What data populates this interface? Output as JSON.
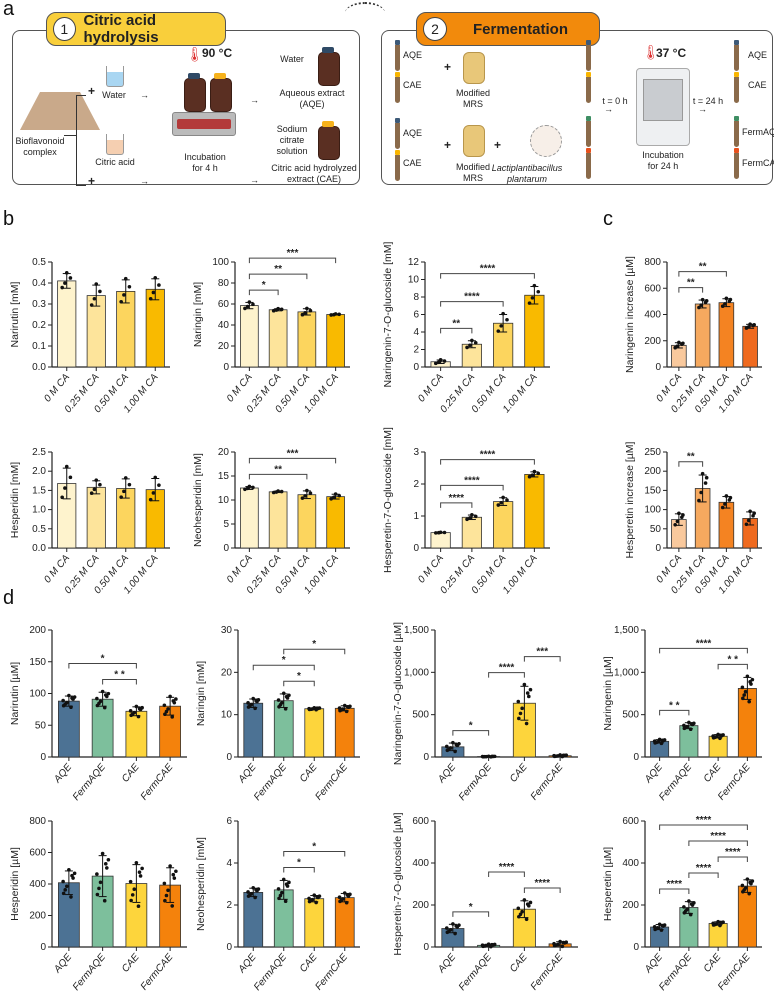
{
  "panel_labels": {
    "a": "a",
    "b": "b",
    "c": "c",
    "d": "d"
  },
  "schematic": {
    "step1": {
      "number": "1",
      "title": "Citric acid hydrolysis",
      "color": "#F9CF3B",
      "bioflavonoid": "Bioflavonoid complex",
      "plus": "+",
      "water": "Water",
      "citric_acid": "Citric acid",
      "temperature": "90 °C",
      "incubation": "Incubation for 4 h",
      "water_pour": "Water",
      "aqe_label": "Aqueous extract (AQE)",
      "sodium_citrate": "Sodium citrate solution",
      "cae_label": "Citric acid hydrolyzed extract (CAE)"
    },
    "step2": {
      "number": "2",
      "title": "Fermentation",
      "color": "#F28A0C",
      "aqe": "AQE",
      "cae": "CAE",
      "plus": "+",
      "mrs": "Modified MRS",
      "bacterium": "Lactiplantibacillus plantarum",
      "t0": "t = 0 h",
      "t24": "t = 24 h",
      "temperature": "37 °C",
      "incubation": "Incubation for 24 h",
      "out_aqe": "AQE",
      "out_cae": "CAE",
      "out_fermaqe": "FermAQE",
      "out_fermcae": "FermCAE"
    },
    "tube_colors": {
      "aqe": "#3D5A78",
      "cae": "#F9B500",
      "fermaqe": "#3E8E63",
      "fermcae": "#E8501C"
    }
  },
  "chart_data": [
    {
      "panel": "b",
      "type": "bar",
      "ylabel": "Narirutin [mM]",
      "categories": [
        "0 M CA",
        "0.25 M CA",
        "0.50 M CA",
        "1.00 M CA"
      ],
      "values": [
        0.41,
        0.34,
        0.36,
        0.37
      ],
      "sd": [
        0.035,
        0.05,
        0.055,
        0.05
      ],
      "n": 4,
      "ylim": [
        0,
        0.5
      ],
      "yticks": [
        0,
        0.1,
        0.2,
        0.3,
        0.4,
        0.5
      ],
      "ytick_labels": [
        "0.0",
        "0.1",
        "0.2",
        "0.3",
        "0.4",
        "0.5"
      ],
      "colors": [
        "#FEF3CD",
        "#FDE49B",
        "#FCD55E",
        "#F9BA00"
      ],
      "significance": []
    },
    {
      "panel": "b",
      "type": "bar",
      "ylabel": "Naringin [mM]",
      "categories": [
        "0 M CA",
        "0.25 M CA",
        "0.50 M CA",
        "1.00 M CA"
      ],
      "values": [
        58.5,
        54.5,
        52.5,
        50
      ],
      "sd": [
        3,
        1,
        3,
        0.5
      ],
      "n": 4,
      "ylim": [
        0,
        100
      ],
      "yticks": [
        0,
        20,
        40,
        60,
        80,
        100
      ],
      "ytick_labels": [
        "0",
        "20",
        "40",
        "60",
        "80",
        "100"
      ],
      "colors": [
        "#FEF3CD",
        "#FDE49B",
        "#FCD55E",
        "#F9BA00"
      ],
      "significance": [
        {
          "from": 0,
          "to": 1,
          "label": "*"
        },
        {
          "from": 0,
          "to": 2,
          "label": "**"
        },
        {
          "from": 0,
          "to": 3,
          "label": "***"
        }
      ]
    },
    {
      "panel": "b",
      "type": "bar",
      "ylabel": "Naringenin-7-O-glucoside [mM]",
      "categories": [
        "0 M CA",
        "0.25 M CA",
        "0.50 M CA",
        "1.00 M CA"
      ],
      "values": [
        0.6,
        2.6,
        5.0,
        8.2
      ],
      "sd": [
        0.2,
        0.4,
        1.0,
        1.0
      ],
      "n": 4,
      "ylim": [
        0,
        12
      ],
      "yticks": [
        0,
        2,
        4,
        6,
        8,
        10,
        12
      ],
      "ytick_labels": [
        "0",
        "2",
        "4",
        "6",
        "8",
        "10",
        "12"
      ],
      "colors": [
        "#FEF3CD",
        "#FDE49B",
        "#FCD55E",
        "#F9BA00"
      ],
      "significance": [
        {
          "from": 0,
          "to": 1,
          "label": "**"
        },
        {
          "from": 0,
          "to": 2,
          "label": "****"
        },
        {
          "from": 0,
          "to": 3,
          "label": "****"
        }
      ]
    },
    {
      "panel": "c",
      "type": "bar",
      "ylabel": "Naringenin increase [µM]",
      "categories": [
        "0 M CA",
        "0.25 M CA",
        "0.50 M CA",
        "1.00 M CA"
      ],
      "values": [
        165,
        480,
        490,
        310
      ],
      "sd": [
        20,
        30,
        30,
        15
      ],
      "n": 5,
      "ylim": [
        0,
        800
      ],
      "yticks": [
        0,
        200,
        400,
        600,
        800
      ],
      "ytick_labels": [
        "0",
        "200",
        "400",
        "600",
        "800"
      ],
      "colors": [
        "#F9C99D",
        "#F6A95F",
        "#F48322",
        "#EF6A1F"
      ],
      "significance": [
        {
          "from": 0,
          "to": 1,
          "label": "**"
        },
        {
          "from": 0,
          "to": 2,
          "label": "**"
        }
      ]
    },
    {
      "panel": "b",
      "type": "bar",
      "ylabel": "Hesperidin [mM]",
      "categories": [
        "0 M CA",
        "0.25 M CA",
        "0.50 M CA",
        "1.00 M CA"
      ],
      "values": [
        1.68,
        1.58,
        1.55,
        1.52
      ],
      "sd": [
        0.4,
        0.17,
        0.25,
        0.29
      ],
      "n": 4,
      "ylim": [
        0,
        2.5
      ],
      "yticks": [
        0,
        0.5,
        1,
        1.5,
        2,
        2.5
      ],
      "ytick_labels": [
        "0.0",
        "0.5",
        "1.0",
        "1.5",
        "2.0",
        "2.5"
      ],
      "colors": [
        "#FEF3CD",
        "#FDE49B",
        "#FCD55E",
        "#F9BA00"
      ],
      "significance": []
    },
    {
      "panel": "b",
      "type": "bar",
      "ylabel": "Neohesperidin [mM]",
      "categories": [
        "0 M CA",
        "0.25 M CA",
        "0.50 M CA",
        "1.00 M CA"
      ],
      "values": [
        12.5,
        11.7,
        11.1,
        10.7
      ],
      "sd": [
        0.3,
        0.15,
        0.8,
        0.5
      ],
      "n": 4,
      "ylim": [
        0,
        20
      ],
      "yticks": [
        0,
        5,
        10,
        15,
        20
      ],
      "ytick_labels": [
        "0",
        "5",
        "10",
        "15",
        "20"
      ],
      "colors": [
        "#FEF3CD",
        "#FDE49B",
        "#FCD55E",
        "#F9BA00"
      ],
      "significance": [
        {
          "from": 0,
          "to": 2,
          "label": "**"
        },
        {
          "from": 0,
          "to": 3,
          "label": "***"
        }
      ]
    },
    {
      "panel": "b",
      "type": "bar",
      "ylabel": "Hesperetin-7-O-glucoside [mM]",
      "categories": [
        "0 M CA",
        "0.25 M CA",
        "0.50 M CA",
        "1.00 M CA"
      ],
      "values": [
        0.48,
        0.96,
        1.45,
        2.3
      ],
      "sd": [
        0.01,
        0.07,
        0.12,
        0.08
      ],
      "n": 4,
      "ylim": [
        0,
        3
      ],
      "yticks": [
        0,
        1,
        2,
        3
      ],
      "ytick_labels": [
        "0",
        "1",
        "2",
        "3"
      ],
      "colors": [
        "#FEF3CD",
        "#FDE49B",
        "#FCD55E",
        "#F9BA00"
      ],
      "significance": [
        {
          "from": 0,
          "to": 1,
          "label": "****"
        },
        {
          "from": 0,
          "to": 2,
          "label": "****"
        },
        {
          "from": 0,
          "to": 3,
          "label": "****"
        }
      ]
    },
    {
      "panel": "c",
      "type": "bar",
      "ylabel": "Hesperetin increase [µM]",
      "categories": [
        "0 M CA",
        "0.25 M CA",
        "0.50 M CA",
        "1.00 M CA"
      ],
      "values": [
        74,
        155,
        119,
        77
      ],
      "sd": [
        15,
        35,
        15,
        17
      ],
      "n": 5,
      "ylim": [
        0,
        250
      ],
      "yticks": [
        0,
        50,
        100,
        150,
        200,
        250
      ],
      "ytick_labels": [
        "0",
        "50",
        "100",
        "150",
        "200",
        "250"
      ],
      "colors": [
        "#F9C99D",
        "#F6A95F",
        "#F48322",
        "#EF6A1F"
      ],
      "significance": [
        {
          "from": 0,
          "to": 1,
          "label": "**"
        }
      ]
    },
    {
      "panel": "d",
      "type": "bar",
      "ylabel": "Narirutin [µM]",
      "categories": [
        "AQE",
        "FermAQE",
        "CAE",
        "FermCAE"
      ],
      "values": [
        88,
        91,
        72,
        80
      ],
      "sd": [
        8,
        11,
        7,
        14
      ],
      "n": 9,
      "ylim": [
        0,
        200
      ],
      "yticks": [
        0,
        50,
        100,
        150,
        200
      ],
      "ytick_labels": [
        "0",
        "50",
        "100",
        "150",
        "200"
      ],
      "colors": [
        "#4C7294",
        "#7DBF9C",
        "#FDD53C",
        "#F4820C"
      ],
      "significance": [
        {
          "from": 1,
          "to": 2,
          "label": "* *"
        },
        {
          "from": 0,
          "to": 2,
          "label": "*"
        }
      ]
    },
    {
      "panel": "d",
      "type": "bar",
      "ylabel": "Naringin [mM]",
      "categories": [
        "AQE",
        "FermAQE",
        "CAE",
        "FermCAE"
      ],
      "values": [
        12.7,
        13.3,
        11.4,
        11.5
      ],
      "sd": [
        1,
        1.6,
        0.2,
        0.6
      ],
      "n": 9,
      "ylim": [
        0,
        30
      ],
      "yticks": [
        0,
        10,
        20,
        30
      ],
      "ytick_labels": [
        "0",
        "10",
        "20",
        "30"
      ],
      "colors": [
        "#4C7294",
        "#7DBF9C",
        "#FDD53C",
        "#F4820C"
      ],
      "significance": [
        {
          "from": 1,
          "to": 2,
          "label": "*"
        },
        {
          "from": 0,
          "to": 2,
          "label": "*"
        },
        {
          "from": 1,
          "to": 3,
          "label": "*"
        }
      ]
    },
    {
      "panel": "d",
      "type": "bar",
      "ylabel": "Naringenin-7-O-glucoside [µM]",
      "categories": [
        "AQE",
        "FermAQE",
        "CAE",
        "FermCAE"
      ],
      "values": [
        120,
        5,
        635,
        15
      ],
      "sd": [
        45,
        3,
        200,
        8
      ],
      "n": 9,
      "ylim": [
        0,
        1500
      ],
      "yticks": [
        0,
        500,
        1000,
        1500
      ],
      "ytick_labels": [
        "0",
        "500",
        "1,000",
        "1,500"
      ],
      "colors": [
        "#4C7294",
        "#7DBF9C",
        "#FDD53C",
        "#F4820C"
      ],
      "significance": [
        {
          "from": 0,
          "to": 1,
          "label": "*"
        },
        {
          "from": 1,
          "to": 2,
          "label": "****"
        },
        {
          "from": 2,
          "to": 3,
          "label": "***"
        }
      ]
    },
    {
      "panel": "d",
      "type": "bar",
      "ylabel": "Naringenin [µM]",
      "categories": [
        "AQE",
        "FermAQE",
        "CAE",
        "FermCAE"
      ],
      "values": [
        185,
        370,
        245,
        810
      ],
      "sd": [
        20,
        35,
        20,
        130
      ],
      "n": 9,
      "ylim": [
        0,
        1500
      ],
      "yticks": [
        0,
        500,
        1000,
        1500
      ],
      "ytick_labels": [
        "0",
        "500",
        "1,000",
        "1,500"
      ],
      "colors": [
        "#4C7294",
        "#7DBF9C",
        "#FDD53C",
        "#F4820C"
      ],
      "significance": [
        {
          "from": 0,
          "to": 1,
          "label": "* *"
        },
        {
          "from": 2,
          "to": 3,
          "label": "* *"
        },
        {
          "from": 0,
          "to": 3,
          "label": "****"
        }
      ]
    },
    {
      "panel": "d",
      "type": "bar",
      "ylabel": "Hesperidin [µM]",
      "categories": [
        "AQE",
        "FermAQE",
        "CAE",
        "FermCAE"
      ],
      "values": [
        408,
        450,
        403,
        393
      ],
      "sd": [
        75,
        130,
        120,
        110
      ],
      "n": 9,
      "ylim": [
        0,
        800
      ],
      "yticks": [
        0,
        200,
        400,
        600,
        800
      ],
      "ytick_labels": [
        "0",
        "200",
        "400",
        "600",
        "800"
      ],
      "colors": [
        "#4C7294",
        "#7DBF9C",
        "#FDD53C",
        "#F4820C"
      ],
      "significance": []
    },
    {
      "panel": "d",
      "type": "bar",
      "ylabel": "Neohesperidin [mM]",
      "categories": [
        "AQE",
        "FermAQE",
        "CAE",
        "FermCAE"
      ],
      "values": [
        2.6,
        2.72,
        2.3,
        2.35
      ],
      "sd": [
        0.2,
        0.45,
        0.15,
        0.2
      ],
      "n": 9,
      "ylim": [
        0,
        6
      ],
      "yticks": [
        0,
        2,
        4,
        6
      ],
      "ytick_labels": [
        "0",
        "2",
        "4",
        "6"
      ],
      "colors": [
        "#4C7294",
        "#7DBF9C",
        "#FDD53C",
        "#F4820C"
      ],
      "significance": [
        {
          "from": 1,
          "to": 2,
          "label": "*"
        },
        {
          "from": 1,
          "to": 3,
          "label": "*"
        }
      ]
    },
    {
      "panel": "d",
      "type": "bar",
      "ylabel": "Hesperetin-7-O-glucoside [µM]",
      "categories": [
        "AQE",
        "FermAQE",
        "CAE",
        "FermCAE"
      ],
      "values": [
        88,
        8,
        180,
        15
      ],
      "sd": [
        20,
        5,
        40,
        10
      ],
      "n": 9,
      "ylim": [
        0,
        600
      ],
      "yticks": [
        0,
        200,
        400,
        600
      ],
      "ytick_labels": [
        "0",
        "200",
        "400",
        "600"
      ],
      "colors": [
        "#4C7294",
        "#7DBF9C",
        "#FDD53C",
        "#F4820C"
      ],
      "significance": [
        {
          "from": 0,
          "to": 1,
          "label": "*"
        },
        {
          "from": 2,
          "to": 3,
          "label": "****"
        },
        {
          "from": 1,
          "to": 2,
          "label": "****"
        }
      ]
    },
    {
      "panel": "d",
      "type": "bar",
      "ylabel": "Hesperetin [µM]",
      "categories": [
        "AQE",
        "FermAQE",
        "CAE",
        "FermCAE"
      ],
      "values": [
        95,
        188,
        112,
        290
      ],
      "sd": [
        12,
        28,
        8,
        30
      ],
      "n": 9,
      "ylim": [
        0,
        600
      ],
      "yticks": [
        0,
        200,
        400,
        600
      ],
      "ytick_labels": [
        "0",
        "200",
        "400",
        "600"
      ],
      "colors": [
        "#4C7294",
        "#7DBF9C",
        "#FDD53C",
        "#F4820C"
      ],
      "significance": [
        {
          "from": 0,
          "to": 1,
          "label": "****"
        },
        {
          "from": 1,
          "to": 2,
          "label": "****"
        },
        {
          "from": 2,
          "to": 3,
          "label": "****"
        },
        {
          "from": 1,
          "to": 3,
          "label": "****"
        },
        {
          "from": 0,
          "to": 3,
          "label": "****"
        }
      ]
    }
  ]
}
